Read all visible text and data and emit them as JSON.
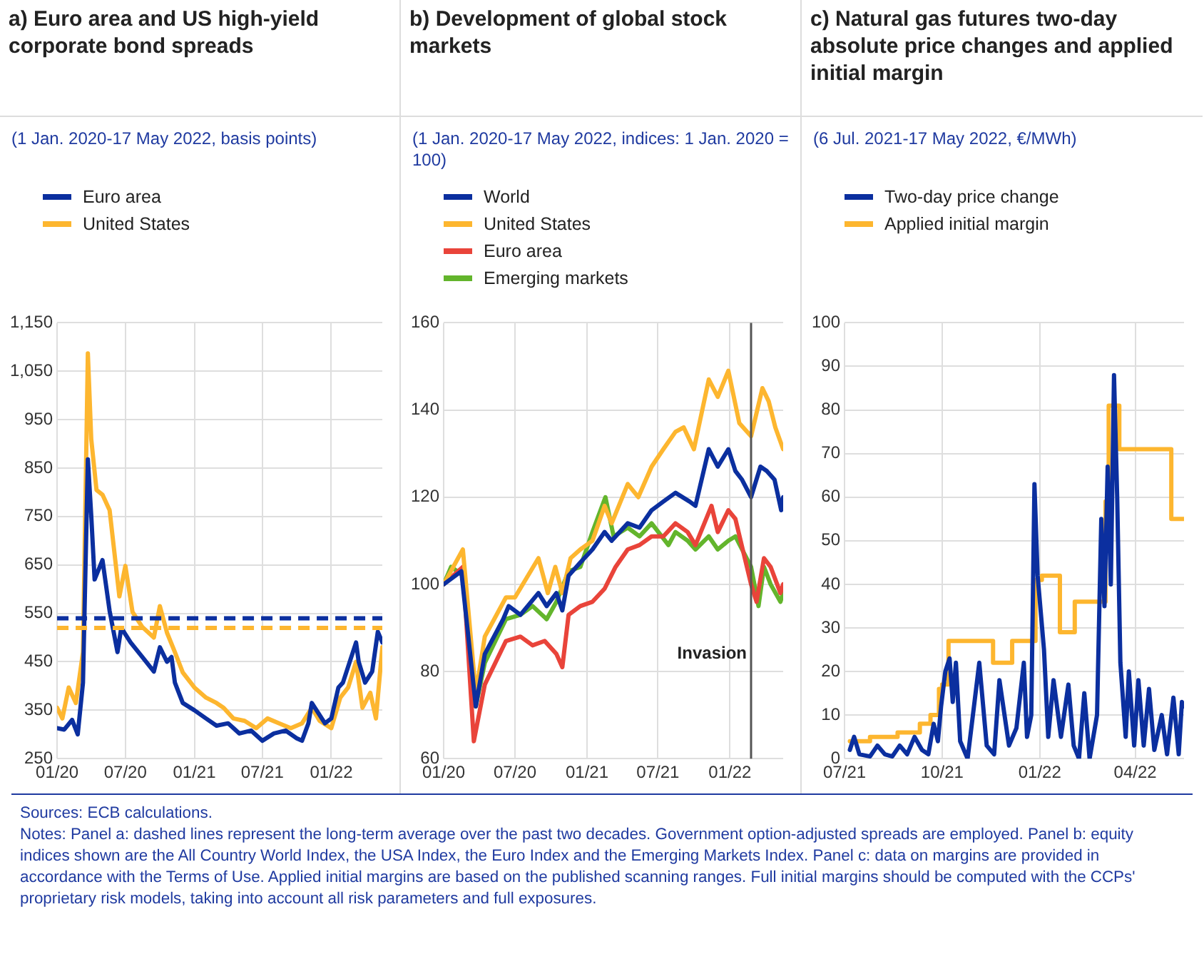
{
  "chart_data": [
    {
      "type": "line",
      "title": "a) Euro area and US high-yield corporate bond spreads",
      "subtitle": "(1 Jan. 2020-17 May 2022, basis points)",
      "legend": "top left",
      "grid": true,
      "xlim": [
        "2020-01-01",
        "2022-05-17"
      ],
      "xticks": [
        {
          "value": "2020-01",
          "label": "01/20"
        },
        {
          "value": "2020-07",
          "label": "07/20"
        },
        {
          "value": "2021-01",
          "label": "01/21"
        },
        {
          "value": "2021-07",
          "label": "07/21"
        },
        {
          "value": "2022-01",
          "label": "01/22"
        }
      ],
      "ylim": [
        250,
        1150
      ],
      "yticks": [
        250,
        350,
        450,
        550,
        650,
        750,
        850,
        950,
        {
          "value": 1050,
          "label": "1,050"
        },
        {
          "value": 1150,
          "label": "1,150"
        }
      ],
      "series": [
        {
          "name": "Euro area",
          "color": "#0b2f9f",
          "x": [
            "2020-01-01",
            "2020-01-20",
            "2020-02-10",
            "2020-02-25",
            "2020-03-10",
            "2020-03-23",
            "2020-04-01",
            "2020-04-10",
            "2020-05-01",
            "2020-05-20",
            "2020-06-10",
            "2020-06-20",
            "2020-07-15",
            "2020-08-15",
            "2020-09-15",
            "2020-10-01",
            "2020-10-20",
            "2020-11-01",
            "2020-11-10",
            "2020-12-01",
            "2021-01-01",
            "2021-02-01",
            "2021-03-01",
            "2021-04-01",
            "2021-05-01",
            "2021-06-01",
            "2021-07-01",
            "2021-08-01",
            "2021-09-01",
            "2021-10-01",
            "2021-10-15",
            "2021-11-01",
            "2021-11-10",
            "2021-12-15",
            "2022-01-01",
            "2022-01-20",
            "2022-02-01",
            "2022-03-08",
            "2022-03-15",
            "2022-04-01",
            "2022-04-20",
            "2022-05-05",
            "2022-05-17"
          ],
          "values": [
            313,
            310,
            330,
            300,
            407,
            868,
            752,
            620,
            660,
            555,
            470,
            520,
            490,
            460,
            430,
            480,
            450,
            460,
            407,
            365,
            350,
            333,
            318,
            323,
            302,
            308,
            287,
            302,
            308,
            292,
            287,
            323,
            365,
            323,
            333,
            397,
            407,
            490,
            450,
            407,
            430,
            512,
            490
          ]
        },
        {
          "name": "United States",
          "color": "#fdb62f",
          "x": [
            "2020-01-01",
            "2020-01-15",
            "2020-02-01",
            "2020-02-20",
            "2020-03-10",
            "2020-03-23",
            "2020-04-01",
            "2020-04-15",
            "2020-05-01",
            "2020-05-20",
            "2020-06-15",
            "2020-07-01",
            "2020-07-20",
            "2020-08-15",
            "2020-09-15",
            "2020-10-01",
            "2020-10-20",
            "2020-11-10",
            "2020-12-01",
            "2021-01-01",
            "2021-02-01",
            "2021-03-01",
            "2021-03-20",
            "2021-04-15",
            "2021-05-15",
            "2021-06-15",
            "2021-07-15",
            "2021-08-15",
            "2021-09-15",
            "2021-10-15",
            "2021-11-10",
            "2021-12-01",
            "2022-01-01",
            "2022-01-25",
            "2022-02-15",
            "2022-03-08",
            "2022-03-25",
            "2022-04-15",
            "2022-04-30",
            "2022-05-17"
          ],
          "values": [
            355,
            333,
            397,
            365,
            470,
            1087,
            910,
            805,
            795,
            763,
            585,
            648,
            553,
            522,
            500,
            565,
            510,
            470,
            428,
            397,
            376,
            365,
            355,
            333,
            328,
            313,
            333,
            323,
            313,
            323,
            355,
            328,
            313,
            376,
            397,
            450,
            355,
            386,
            333,
            480
          ]
        }
      ],
      "ref_lines": [
        {
          "axis": "y",
          "value": 540,
          "color": "#0b2f9f",
          "line_style": "dashed"
        },
        {
          "axis": "y",
          "value": 520,
          "color": "#fdb62f",
          "line_style": "dashed"
        }
      ],
      "annotations": [
        "Sources: ECB calculations.",
        "Notes: Panel a: dashed lines represent the long-term average over the past two decades. Government option-adjusted spreads are employed. Panel b: equity indices shown are the All Country World Index, the USA Index, the Euro Index and the Emerging Markets Index. Panel c: data on margins are provided in accordance with the Terms of Use. Applied initial margins are based on the published scanning ranges. Full initial margins should be computed with the CCPs' proprietary risk models, taking into account all risk parameters and full exposures."
      ]
    },
    {
      "type": "line",
      "title": "b) Development of global stock markets",
      "subtitle": "(1 Jan. 2020-17 May 2022, indices: 1 Jan. 2020 = 100)",
      "legend": "top left",
      "grid": true,
      "xlim": [
        "2020-01-01",
        "2022-05-17"
      ],
      "xticks": [
        {
          "value": "2020-01",
          "label": "01/20"
        },
        {
          "value": "2020-07",
          "label": "07/20"
        },
        {
          "value": "2021-01",
          "label": "01/21"
        },
        {
          "value": "2021-07",
          "label": "07/21"
        },
        {
          "value": "2022-01",
          "label": "01/22"
        }
      ],
      "ylim": [
        60,
        160
      ],
      "yticks": [
        60,
        80,
        100,
        120,
        140,
        160
      ],
      "series": [
        {
          "name": "World",
          "color": "#0b2f9f",
          "x": [
            "2020-01-01",
            "2020-02-15",
            "2020-03-23",
            "2020-04-15",
            "2020-06-01",
            "2020-06-15",
            "2020-07-15",
            "2020-08-30",
            "2020-09-20",
            "2020-10-15",
            "2020-10-30",
            "2020-11-15",
            "2020-12-15",
            "2021-01-15",
            "2021-02-15",
            "2021-03-05",
            "2021-04-15",
            "2021-05-15",
            "2021-06-15",
            "2021-07-15",
            "2021-08-15",
            "2021-09-20",
            "2021-10-05",
            "2021-11-08",
            "2021-12-01",
            "2021-12-28",
            "2022-01-15",
            "2022-02-01",
            "2022-02-24",
            "2022-03-20",
            "2022-04-05",
            "2022-04-25",
            "2022-05-12",
            "2022-05-17"
          ],
          "values": [
            100,
            103,
            72,
            84,
            92,
            95,
            93,
            98,
            95,
            98,
            94,
            102,
            105,
            108,
            112,
            110,
            114,
            113,
            117,
            119,
            121,
            119,
            118,
            131,
            127,
            131,
            126,
            124,
            120,
            127,
            126,
            124,
            117,
            120
          ]
        },
        {
          "name": "United States",
          "color": "#fdb62f",
          "x": [
            "2020-01-01",
            "2020-02-19",
            "2020-03-23",
            "2020-04-15",
            "2020-06-08",
            "2020-07-01",
            "2020-08-30",
            "2020-09-23",
            "2020-10-12",
            "2020-10-30",
            "2020-11-20",
            "2020-12-15",
            "2021-01-15",
            "2021-02-15",
            "2021-03-05",
            "2021-04-15",
            "2021-05-12",
            "2021-06-15",
            "2021-07-15",
            "2021-08-15",
            "2021-09-05",
            "2021-10-01",
            "2021-11-08",
            "2021-12-01",
            "2021-12-28",
            "2022-01-25",
            "2022-02-24",
            "2022-03-25",
            "2022-04-10",
            "2022-04-27",
            "2022-05-17"
          ],
          "values": [
            100,
            108,
            75,
            88,
            97,
            97,
            106,
            98,
            104,
            98,
            106,
            108,
            110,
            118,
            114,
            123,
            120,
            127,
            131,
            135,
            136,
            131,
            147,
            143,
            149,
            137,
            134,
            145,
            142,
            136,
            131
          ]
        },
        {
          "name": "Euro area",
          "color": "#e9443a",
          "x": [
            "2020-01-01",
            "2020-02-19",
            "2020-03-18",
            "2020-04-15",
            "2020-06-08",
            "2020-07-15",
            "2020-08-15",
            "2020-09-15",
            "2020-10-15",
            "2020-10-30",
            "2020-11-15",
            "2020-12-15",
            "2021-01-15",
            "2021-02-15",
            "2021-03-15",
            "2021-04-15",
            "2021-05-15",
            "2021-06-15",
            "2021-07-15",
            "2021-08-15",
            "2021-09-15",
            "2021-10-05",
            "2021-11-15",
            "2021-12-01",
            "2021-12-28",
            "2022-01-15",
            "2022-02-24",
            "2022-03-10",
            "2022-03-29",
            "2022-04-15",
            "2022-05-10",
            "2022-05-17"
          ],
          "values": [
            100,
            104,
            64,
            77,
            87,
            88,
            86,
            87,
            84,
            81,
            93,
            95,
            96,
            99,
            104,
            108,
            109,
            111,
            111,
            114,
            112,
            109,
            118,
            112,
            117,
            115,
            100,
            96,
            106,
            104,
            98,
            100
          ]
        },
        {
          "name": "Emerging markets",
          "color": "#63b52c",
          "x": [
            "2020-01-01",
            "2020-01-20",
            "2020-02-20",
            "2020-03-23",
            "2020-04-15",
            "2020-06-08",
            "2020-07-15",
            "2020-08-15",
            "2020-09-20",
            "2020-10-15",
            "2020-11-15",
            "2020-12-15",
            "2021-01-15",
            "2021-02-17",
            "2021-03-10",
            "2021-04-15",
            "2021-05-15",
            "2021-06-15",
            "2021-07-28",
            "2021-08-15",
            "2021-09-15",
            "2021-10-05",
            "2021-11-08",
            "2021-12-01",
            "2021-12-28",
            "2022-01-15",
            "2022-02-24",
            "2022-03-15",
            "2022-03-29",
            "2022-04-15",
            "2022-05-10",
            "2022-05-17"
          ],
          "values": [
            100,
            104,
            102,
            72,
            82,
            92,
            93,
            95,
            92,
            96,
            103,
            104,
            112,
            120,
            111,
            113,
            111,
            114,
            109,
            112,
            110,
            108,
            111,
            108,
            110,
            111,
            104,
            95,
            104,
            100,
            96,
            98
          ]
        }
      ],
      "ref_lines": [
        {
          "axis": "x",
          "value": "2022-02-24",
          "label": "Invasion",
          "color": "#555555",
          "line_style": "solid"
        }
      ]
    },
    {
      "type": "line",
      "title": "c) Natural gas futures two-day absolute price changes and applied initial margin",
      "subtitle": "(6 Jul. 2021-17 May 2022, €/MWh)",
      "legend": "top left",
      "grid": true,
      "xlim": [
        "2021-07-01",
        "2022-05-17"
      ],
      "xticks": [
        {
          "value": "2021-07-01",
          "label": "07/21"
        },
        {
          "value": "2021-10-01",
          "label": "10/21"
        },
        {
          "value": "2022-01-01",
          "label": "01/22"
        },
        {
          "value": "2022-04-01",
          "label": "04/22"
        }
      ],
      "ylim": [
        0,
        100
      ],
      "yticks": [
        0,
        10,
        20,
        30,
        40,
        50,
        60,
        70,
        80,
        90,
        100
      ],
      "series": [
        {
          "name": "Two-day price change",
          "color": "#0b2f9f",
          "x": [
            "2021-07-06",
            "2021-07-10",
            "2021-07-15",
            "2021-07-25",
            "2021-08-01",
            "2021-08-08",
            "2021-08-15",
            "2021-08-22",
            "2021-08-29",
            "2021-09-05",
            "2021-09-12",
            "2021-09-18",
            "2021-09-23",
            "2021-09-27",
            "2021-09-30",
            "2021-10-04",
            "2021-10-08",
            "2021-10-11",
            "2021-10-14",
            "2021-10-18",
            "2021-10-25",
            "2021-11-05",
            "2021-11-12",
            "2021-11-19",
            "2021-11-24",
            "2021-12-03",
            "2021-12-10",
            "2021-12-17",
            "2021-12-20",
            "2021-12-24",
            "2021-12-27",
            "2021-12-30",
            "2022-01-05",
            "2022-01-09",
            "2022-01-14",
            "2022-01-21",
            "2022-01-28",
            "2022-02-02",
            "2022-02-07",
            "2022-02-12",
            "2022-02-17",
            "2022-02-24",
            "2022-02-28",
            "2022-03-03",
            "2022-03-06",
            "2022-03-09",
            "2022-03-12",
            "2022-03-15",
            "2022-03-18",
            "2022-03-23",
            "2022-03-26",
            "2022-03-31",
            "2022-04-04",
            "2022-04-09",
            "2022-04-14",
            "2022-04-19",
            "2022-04-26",
            "2022-05-01",
            "2022-05-07",
            "2022-05-12",
            "2022-05-15",
            "2022-05-17"
          ],
          "values": [
            2,
            5,
            1,
            0.5,
            3,
            1,
            0.5,
            3,
            1,
            5,
            2,
            1,
            8,
            4,
            12,
            20,
            23,
            13,
            22,
            4,
            0,
            22,
            3,
            1,
            18,
            3,
            7,
            22,
            5,
            10,
            63,
            42,
            25,
            5,
            18,
            5,
            17,
            3,
            0,
            15,
            0,
            10,
            55,
            35,
            67,
            40,
            88,
            60,
            22,
            5,
            20,
            3,
            18,
            3,
            16,
            2,
            10,
            1,
            14,
            1,
            13,
            12
          ]
        },
        {
          "name": "Applied initial margin",
          "color": "#fdb62f",
          "type": "step",
          "x": [
            "2021-07-06",
            "2021-07-25",
            "2021-08-20",
            "2021-09-10",
            "2021-09-20",
            "2021-09-28",
            "2021-10-01",
            "2021-10-07",
            "2021-11-18",
            "2021-12-06",
            "2021-12-28",
            "2022-01-03",
            "2022-01-20",
            "2022-02-03",
            "2022-03-04",
            "2022-03-07",
            "2022-03-17",
            "2022-05-05",
            "2022-05-17"
          ],
          "values": [
            4,
            5,
            6,
            8,
            10,
            16,
            17,
            27,
            22,
            27,
            41,
            42,
            29,
            36,
            59,
            81,
            71,
            55,
            55
          ]
        }
      ]
    }
  ]
}
